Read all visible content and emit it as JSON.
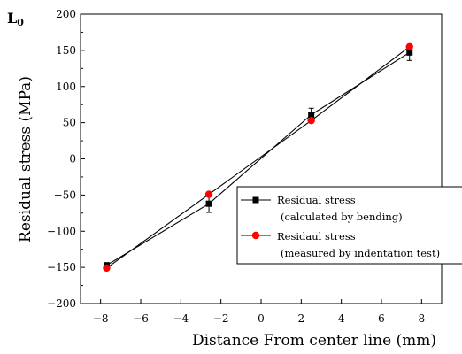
{
  "panel_label": "L",
  "panel_label_sub": "0",
  "chart_data": {
    "type": "scatter",
    "title": "",
    "xlabel": "Distance From center line (mm)",
    "ylabel": "Residual stress (MPa)",
    "xlim": [
      -9,
      9
    ],
    "ylim": [
      -200,
      200
    ],
    "xticks": [
      -8,
      -6,
      -4,
      -2,
      0,
      2,
      4,
      6,
      8
    ],
    "yticks": [
      -200,
      -150,
      -100,
      -50,
      0,
      50,
      100,
      150,
      200
    ],
    "legend_position": "lower-right",
    "series": [
      {
        "name": "Residual stress",
        "name_note": "(calculated by bending)",
        "marker": "square",
        "color": "#000000",
        "x": [
          -7.7,
          -2.6,
          2.5,
          7.4
        ],
        "y": [
          -147,
          -62,
          61,
          147
        ],
        "yerr": [
          3,
          12,
          9,
          11
        ]
      },
      {
        "name": "Residaul stress",
        "name_note": "(measured by indentation test)",
        "marker": "circle",
        "color": "#ff0000",
        "x": [
          -7.7,
          -2.6,
          2.5,
          7.4
        ],
        "y": [
          -151,
          -49,
          53,
          155
        ],
        "yerr": []
      }
    ]
  }
}
